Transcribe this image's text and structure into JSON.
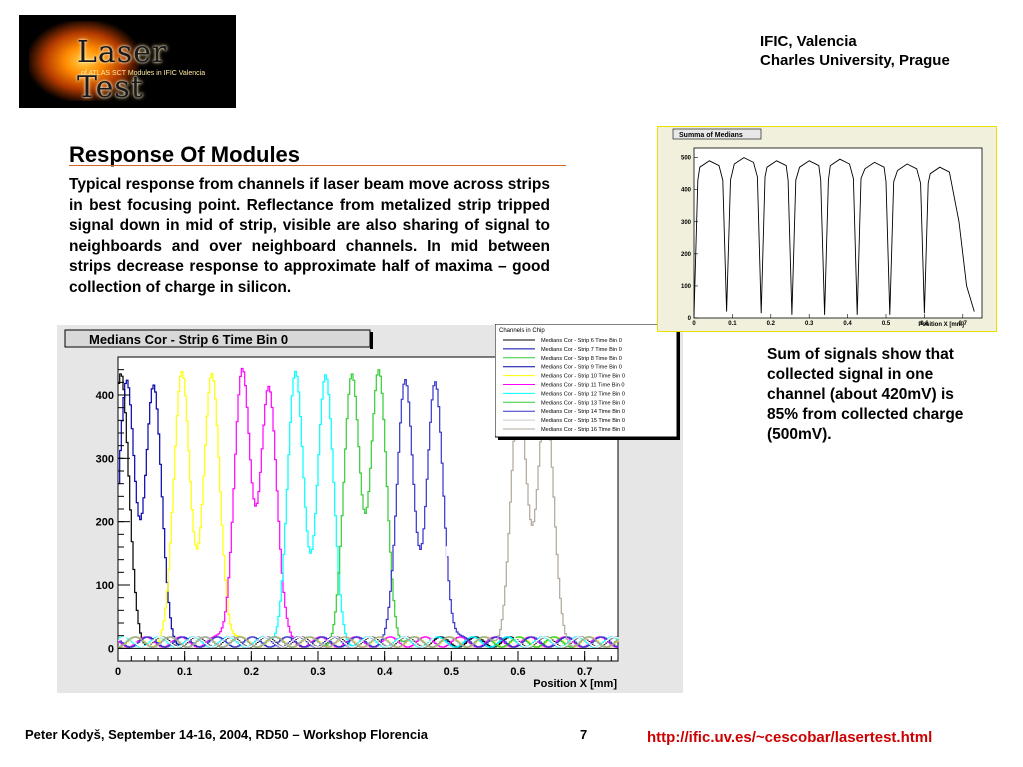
{
  "logo": {
    "title": "Laser Test",
    "subtitle": "of ATLAS SCT Modules in IFIC Valencia"
  },
  "institutions": [
    "IFIC, Valencia",
    "Charles University, Prague"
  ],
  "heading": "Response Of Modules",
  "body": "Typical response from channels if laser beam move across strips in best focusing point. Reflectance from metalized strip tripped signal down in mid of strip, visible are also sharing of signal to neighboards and over neighboard channels. In mid between strips decrease response to approximate half of maxima – good collection of charge in silicon.",
  "caption": "Sum of signals show that collected signal in one channel (about 420mV) is 85% from collected charge (500mV).",
  "footer": {
    "author": "Peter Kodyš, September 14-16, 2004, RD50 – Workshop Florencia",
    "page": "7",
    "url": "http://ific.uv.es/~cescobar/lasertest.html"
  },
  "chart_data": [
    {
      "type": "line",
      "title": "Medians Cor - Strip 6 Time Bin 0",
      "xlabel": "Position X [mm]",
      "ylabel": "",
      "xlim": [
        0,
        0.75
      ],
      "ylim": [
        -20,
        460
      ],
      "xticks": [
        0,
        0.1,
        0.2,
        0.3,
        0.4,
        0.5,
        0.6,
        0.7
      ],
      "yticks": [
        0,
        100,
        200,
        300,
        400
      ],
      "legend": {
        "title": "Channels in Chip",
        "placement": "top-right",
        "entries": [
          "Medians Cor - Strip 6 Time Bin 0",
          "Medians Cor - Strip 7 Time Bin 0",
          "Medians Cor - Strip 8 Time Bin 0",
          "Medians Cor - Strip 9 Time Bin 0",
          "Medians Cor - Strip 10 Time Bin 0",
          "Medians Cor - Strip 11 Time Bin 0",
          "Medians Cor - Strip 12 Time Bin 0",
          "Medians Cor - Strip 13 Time Bin 0",
          "Medians Cor - Strip 14 Time Bin 0",
          "Medians Cor - Strip 15 Time Bin 0",
          "Medians Cor - Strip 16 Time Bin 0"
        ]
      },
      "series": [
        {
          "name": "Medians Cor - Strip 6 Time Bin 0",
          "color": "#000000",
          "peaks": [
            {
              "x": 0.003,
              "y": 420
            }
          ]
        },
        {
          "name": "Medians Cor - Strip 7 Time Bin 0",
          "color": "#0000aa",
          "peaks": [
            {
              "x": 0.012,
              "y": 405
            },
            {
              "x": 0.052,
              "y": 400
            }
          ]
        },
        {
          "name": "Medians Cor - Strip 8 Time Bin 0",
          "color": "#ffff00",
          "peaks": [
            {
              "x": 0.095,
              "y": 430
            },
            {
              "x": 0.14,
              "y": 420
            }
          ]
        },
        {
          "name": "Medians Cor - Strip 9 Time Bin 0",
          "color": "#ff00ff",
          "peaks": [
            {
              "x": 0.185,
              "y": 430
            },
            {
              "x": 0.225,
              "y": 410
            }
          ]
        },
        {
          "name": "Medians Cor - Strip 10 Time Bin 0",
          "color": "#00ffff",
          "peaks": [
            {
              "x": 0.265,
              "y": 420
            },
            {
              "x": 0.31,
              "y": 420
            }
          ]
        },
        {
          "name": "Medians Cor - Strip 11 Time Bin 0",
          "color": "#33cc33",
          "peaks": [
            {
              "x": 0.35,
              "y": 420
            },
            {
              "x": 0.39,
              "y": 420
            }
          ]
        },
        {
          "name": "Medians Cor - Strip 12 Time Bin 0",
          "color": "#3333cc",
          "peaks": [
            {
              "x": 0.43,
              "y": 420
            },
            {
              "x": 0.475,
              "y": 410
            }
          ]
        },
        {
          "name": "Medians Cor - Strip 13 Time Bin 0",
          "color": "#ffffff",
          "peaks": [
            {
              "x": 0.51,
              "y": 430
            },
            {
              "x": 0.555,
              "y": 430
            }
          ]
        },
        {
          "name": "Medians Cor - Strip 14 Time Bin 0",
          "color": "#b0a89a",
          "peaks": [
            {
              "x": 0.6,
              "y": 380
            },
            {
              "x": 0.64,
              "y": 380
            }
          ]
        }
      ]
    },
    {
      "type": "line",
      "title": "Summa of Medians",
      "xlabel": "Position X [mm]",
      "ylabel": "",
      "xlim": [
        0,
        0.75
      ],
      "ylim": [
        0,
        530
      ],
      "xticks": [
        0,
        0.1,
        0.2,
        0.3,
        0.4,
        0.5,
        0.6,
        0.7
      ],
      "yticks": [
        0,
        100,
        200,
        300,
        400,
        500
      ],
      "series": [
        {
          "name": "",
          "color": "#000000",
          "peaks": [
            {
              "x": 0.04,
              "y": 490
            },
            {
              "x": 0.13,
              "y": 500
            },
            {
              "x": 0.215,
              "y": 490
            },
            {
              "x": 0.3,
              "y": 490
            },
            {
              "x": 0.38,
              "y": 495
            },
            {
              "x": 0.47,
              "y": 485
            },
            {
              "x": 0.555,
              "y": 480
            },
            {
              "x": 0.64,
              "y": 470
            }
          ],
          "dips": [
            {
              "x": 0.085,
              "y": 20
            },
            {
              "x": 0.175,
              "y": 15
            },
            {
              "x": 0.255,
              "y": 10
            },
            {
              "x": 0.34,
              "y": 10
            },
            {
              "x": 0.425,
              "y": 10
            },
            {
              "x": 0.51,
              "y": 10
            },
            {
              "x": 0.6,
              "y": 15
            }
          ],
          "end": {
            "x": 0.73,
            "y": 20
          }
        }
      ]
    }
  ]
}
